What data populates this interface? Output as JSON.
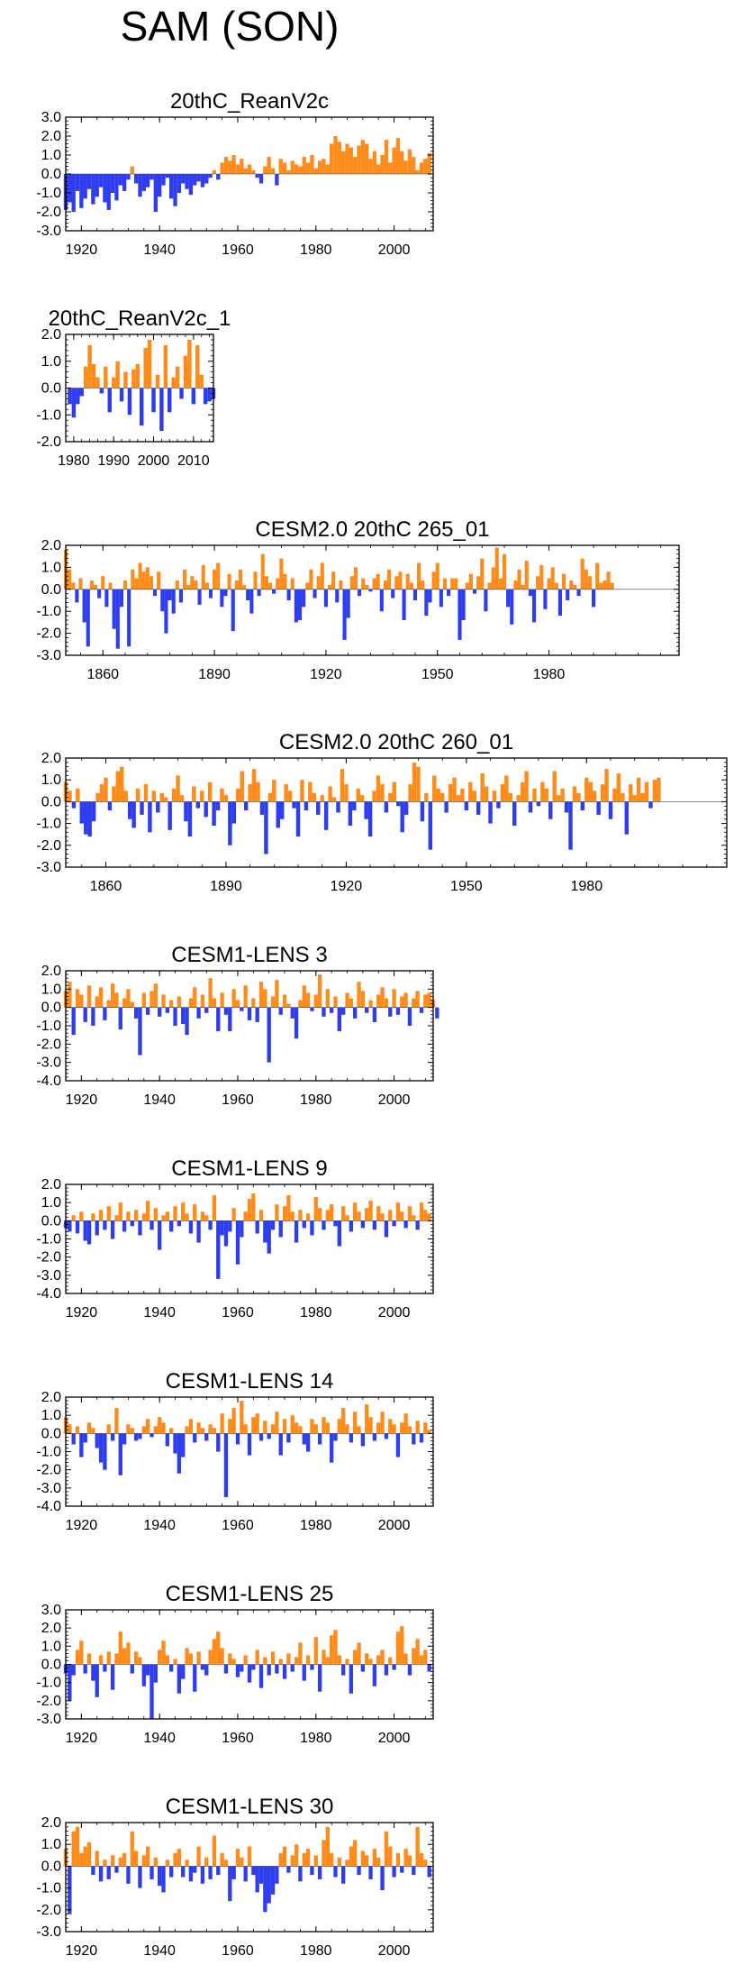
{
  "title": "SAM (SON)",
  "colors": {
    "positive": "#ff8c1a",
    "negative": "#2e3df0",
    "axis": "#000000"
  },
  "chart_data": [
    {
      "type": "area",
      "title": "20thC_ReanV2c",
      "xlim": [
        1916,
        2010
      ],
      "ylim": [
        -3,
        3
      ],
      "yticks": [
        "3.0",
        "2.0",
        "1.0",
        "0.0",
        "-1.0",
        "-2.0",
        "-3.0"
      ],
      "ytick_values": [
        3,
        2,
        1,
        0,
        -1,
        -2,
        -3
      ],
      "xticks": [
        "1920",
        "1940",
        "1960",
        "1980",
        "2000"
      ],
      "xtick_values": [
        1920,
        1940,
        1960,
        1980,
        2000
      ],
      "x_start": 1916,
      "x_step": 1,
      "values": [
        -1.9,
        -1.5,
        -2.0,
        -0.9,
        -1.8,
        -1.3,
        -0.8,
        -1.6,
        -1.2,
        -0.7,
        -1.5,
        -1.9,
        -1.0,
        -1.4,
        -0.6,
        -0.9,
        -0.3,
        0.4,
        -0.5,
        -1.2,
        -0.9,
        -0.7,
        -0.3,
        -2.0,
        -1.2,
        -0.6,
        -0.2,
        -1.3,
        -1.7,
        -1.0,
        -0.5,
        -0.8,
        -1.1,
        -0.6,
        -0.4,
        -0.7,
        -0.5,
        -0.2,
        0.2,
        -0.3,
        0.6,
        0.9,
        0.7,
        1.0,
        0.5,
        0.8,
        0.3,
        0.5,
        0.2,
        -0.2,
        -0.5,
        0.4,
        0.9,
        0.3,
        -0.6,
        0.8,
        0.6,
        0.2,
        0.7,
        0.5,
        0.4,
        0.9,
        0.6,
        1.0,
        0.3,
        0.7,
        0.8,
        0.5,
        1.6,
        2.0,
        1.7,
        1.2,
        1.6,
        1.4,
        0.9,
        1.5,
        1.8,
        1.6,
        0.8,
        1.2,
        0.5,
        1.0,
        1.8,
        0.6,
        1.4,
        1.9,
        1.2,
        0.7,
        1.3,
        0.9,
        0.2,
        0.6,
        0.8,
        1.1
      ]
    },
    {
      "type": "area",
      "title": "20thC_ReanV2c_1",
      "xlim": [
        1978,
        2015
      ],
      "ylim": [
        -2,
        2
      ],
      "yticks": [
        "2.0",
        "1.0",
        "0.0",
        "-1.0",
        "-2.0"
      ],
      "ytick_values": [
        2,
        1,
        0,
        -1,
        -2
      ],
      "xticks": [
        "1980",
        "1990",
        "2000",
        "2010"
      ],
      "xtick_values": [
        1980,
        1990,
        2000,
        2010
      ],
      "x_start": 1979,
      "x_step": 1,
      "values": [
        -0.6,
        -1.1,
        -0.6,
        -0.3,
        0.8,
        1.6,
        0.9,
        0.4,
        -0.2,
        0.8,
        -0.9,
        0.4,
        1.0,
        -0.5,
        0.6,
        -1.0,
        0.7,
        0.9,
        -1.4,
        1.5,
        1.8,
        -0.9,
        0.5,
        -1.6,
        1.6,
        -0.9,
        0.4,
        0.8,
        -0.4,
        1.2,
        1.8,
        -0.6,
        1.6,
        0.5,
        -0.6,
        -0.5,
        -0.4
      ]
    },
    {
      "type": "area",
      "title": "CESM2.0 20thC 265_01",
      "xlim": [
        1850,
        2015
      ],
      "ylim": [
        -3,
        2
      ],
      "yticks": [
        "2.0",
        "1.0",
        "0.0",
        "-1.0",
        "-2.0",
        "-3.0"
      ],
      "ytick_values": [
        2,
        1,
        0,
        -1,
        -2,
        -3
      ],
      "xticks": [
        "1860",
        "1890",
        "1920",
        "1950",
        "1980"
      ],
      "xtick_values": [
        1860,
        1890,
        1920,
        1950,
        1980
      ],
      "x_start": 1850,
      "x_step": 1,
      "values": [
        1.8,
        0.9,
        0.3,
        -0.6,
        0.5,
        -1.5,
        -2.6,
        0.4,
        0.2,
        -0.4,
        0.6,
        -0.8,
        0.3,
        -1.8,
        -2.7,
        -0.8,
        0.4,
        -2.6,
        0.9,
        0.5,
        1.2,
        0.8,
        1.0,
        0.6,
        -0.3,
        0.8,
        -1.0,
        -2.0,
        -0.5,
        -1.1,
        0.4,
        -0.6,
        0.9,
        0.2,
        0.6,
        0.4,
        -0.7,
        1.1,
        0.3,
        -0.4,
        0.9,
        1.2,
        -0.8,
        -0.3,
        0.7,
        -1.9,
        0.4,
        0.9,
        0.2,
        -0.5,
        -1.1,
        0.8,
        -0.3,
        1.6,
        0.6,
        0.3,
        -0.2,
        0.5,
        1.4,
        0.7,
        -0.5,
        0.5,
        -1.5,
        -1.4,
        -0.8,
        0.3,
        0.9,
        -0.4,
        0.6,
        1.2,
        -0.8,
        0.2,
        0.8,
        -0.6,
        0.4,
        -2.3,
        -1.3,
        0.6,
        1.0,
        -0.3,
        0.5,
        0.2,
        -0.1,
        0.5,
        0.7,
        -1.0,
        0.4,
        0.9,
        -0.4,
        0.6,
        0.8,
        -1.4,
        0.7,
        0.3,
        -0.5,
        1.2,
        0.4,
        -1.2,
        -0.6,
        0.8,
        1.2,
        -0.8,
        0.5,
        -0.3,
        0.5,
        0.5,
        -2.3,
        -1.4,
        0.3,
        0.7,
        -0.2,
        0.6,
        1.4,
        -1.0,
        0.3,
        1.0,
        1.9,
        0.5,
        1.6,
        -0.8,
        -1.6,
        0.4,
        0.9,
        0.2,
        1.3,
        -0.3,
        -1.5,
        0.6,
        1.1,
        -0.9,
        0.5,
        1.0,
        0.3,
        -1.2,
        0.7,
        -0.5,
        0.4,
        0.2,
        -0.3,
        1.4,
        0.9,
        0.6,
        -0.8,
        1.2,
        0.3,
        0.4,
        0.8,
        0.3
      ]
    },
    {
      "type": "area",
      "title": "CESM2.0 20thC 260_01",
      "xlim": [
        1850,
        2015
      ],
      "ylim": [
        -3,
        2
      ],
      "yticks": [
        "2.0",
        "1.0",
        "0.0",
        "-1.0",
        "-2.0",
        "-3.0"
      ],
      "ytick_values": [
        2,
        1,
        0,
        -1,
        -2,
        -3
      ],
      "xticks": [
        "1860",
        "1890",
        "1920",
        "1950",
        "1980"
      ],
      "xtick_values": [
        1860,
        1890,
        1920,
        1950,
        1980
      ],
      "x_start": 1850,
      "x_step": 1,
      "values": [
        0.9,
        0.5,
        -0.3,
        0.6,
        -1.0,
        -1.5,
        -1.6,
        -0.9,
        0.4,
        0.8,
        1.1,
        -0.4,
        0.7,
        1.4,
        1.6,
        0.5,
        -0.8,
        -1.2,
        0.6,
        -0.6,
        0.8,
        -1.4,
        0.5,
        -0.5,
        0.4,
        0.2,
        -1.3,
        0.6,
        1.2,
        0.3,
        -0.9,
        -1.6,
        0.7,
        -0.3,
        0.5,
        -0.7,
        0.9,
        -1.1,
        -0.4,
        0.6,
        0.3,
        -2.0,
        -1.0,
        0.6,
        1.4,
        -0.4,
        0.8,
        1.5,
        0.9,
        -0.6,
        -2.4,
        0.4,
        1.0,
        -1.2,
        -0.8,
        0.8,
        0.5,
        -0.3,
        -1.6,
        1.0,
        -0.4,
        0.9,
        0.4,
        -0.6,
        0.3,
        -1.3,
        0.7,
        0.2,
        -0.5,
        1.5,
        0.8,
        -1.1,
        -0.4,
        0.6,
        0.3,
        -0.8,
        -1.6,
        0.5,
        1.2,
        0.8,
        -0.5,
        0.4,
        0.9,
        -0.2,
        -1.4,
        -0.6,
        0.8,
        1.8,
        1.6,
        -0.9,
        0.4,
        -2.2,
        1.2,
        0.6,
        0.4,
        -0.5,
        0.8,
        1.1,
        0.3,
        0.6,
        -0.4,
        0.9,
        0.5,
        -0.6,
        1.3,
        0.7,
        -1.0,
        0.5,
        -0.3,
        0.8,
        1.2,
        0.4,
        -1.1,
        0.3,
        0.9,
        1.4,
        -0.5,
        0.6,
        -0.2,
        0.9,
        0.6,
        -0.8,
        1.4,
        0.3,
        0.6,
        -0.5,
        -2.2,
        0.7,
        0.4,
        -0.4,
        1.1,
        0.9,
        0.5,
        -0.6,
        0.8,
        1.5,
        -0.8,
        0.6,
        1.3,
        0.4,
        -1.5,
        0.8,
        0.3,
        1.1,
        0.4,
        0.9,
        -0.3,
        1.0,
        1.1
      ]
    },
    {
      "type": "area",
      "title": "CESM1-LENS 3",
      "xlim": [
        1916,
        2010
      ],
      "ylim": [
        -4,
        2
      ],
      "yticks": [
        "2.0",
        "1.0",
        "0.0",
        "-1.0",
        "-2.0",
        "-3.0",
        "-4.0"
      ],
      "ytick_values": [
        2,
        1,
        0,
        -1,
        -2,
        -3,
        -4
      ],
      "xticks": [
        "1920",
        "1940",
        "1960",
        "1980",
        "2000"
      ],
      "xtick_values": [
        1920,
        1940,
        1960,
        1980,
        2000
      ],
      "x_start": 1916,
      "x_step": 1,
      "values": [
        0.9,
        1.4,
        -1.5,
        1.0,
        0.7,
        -0.8,
        1.2,
        -1.0,
        0.6,
        1.1,
        -0.7,
        0.4,
        1.3,
        0.8,
        -1.2,
        0.5,
        1.0,
        0.3,
        -0.6,
        -2.6,
        0.8,
        -0.4,
        0.9,
        1.3,
        -0.5,
        0.7,
        -0.3,
        0.4,
        -1.0,
        0.6,
        -0.9,
        -1.5,
        0.5,
        1.1,
        -0.6,
        0.7,
        -0.3,
        1.6,
        0.5,
        -1.3,
        0.8,
        -0.4,
        -1.3,
        1.0,
        0.4,
        -0.2,
        1.2,
        -0.7,
        0.5,
        -0.8,
        1.4,
        1.0,
        -3.0,
        0.6,
        1.5,
        -0.4,
        0.7,
        0.2,
        -0.6,
        -1.7,
        0.4,
        1.2,
        0.8,
        -0.2,
        0.7,
        1.8,
        -0.5,
        1.0,
        -0.3,
        0.6,
        -1.3,
        -0.4,
        0.8,
        0.5,
        -0.6,
        1.4,
        0.9,
        -0.3,
        0.4,
        -0.8,
        0.7,
        1.1,
        0.5,
        -0.5,
        1.0,
        -0.4,
        0.6,
        0.8,
        -1.0,
        0.5,
        0.9,
        -0.3,
        0.7,
        0.8,
        0.4,
        -0.6
      ]
    },
    {
      "type": "area",
      "title": "CESM1-LENS 9",
      "xlim": [
        1916,
        2010
      ],
      "ylim": [
        -4,
        2
      ],
      "yticks": [
        "2.0",
        "1.0",
        "0.0",
        "-1.0",
        "-2.0",
        "-3.0",
        "-4.0"
      ],
      "ytick_values": [
        2,
        1,
        0,
        -1,
        -2,
        -3,
        -4
      ],
      "xticks": [
        "1920",
        "1940",
        "1960",
        "1980",
        "2000"
      ],
      "xtick_values": [
        1920,
        1940,
        1960,
        1980,
        2000
      ],
      "x_start": 1916,
      "x_step": 1,
      "values": [
        -0.4,
        -0.6,
        0.3,
        -0.7,
        0.5,
        -1.1,
        -1.3,
        0.4,
        -0.8,
        0.6,
        -0.5,
        0.8,
        -1.0,
        0.3,
        1.0,
        -0.6,
        0.5,
        -0.3,
        0.6,
        -0.8,
        0.4,
        1.1,
        -0.5,
        0.7,
        -1.6,
        0.3,
        0.5,
        -0.6,
        0.8,
        -0.3,
        1.0,
        0.4,
        -0.7,
        0.9,
        -1.2,
        0.5,
        0.3,
        -0.5,
        1.4,
        -3.2,
        -0.8,
        -1.4,
        -0.6,
        0.7,
        -2.4,
        -0.9,
        0.5,
        1.2,
        1.5,
        -0.7,
        0.6,
        -1.2,
        -1.8,
        -0.5,
        0.9,
        -0.9,
        0.8,
        1.4,
        0.5,
        -1.2,
        0.6,
        -0.4,
        0.4,
        -0.8,
        1.3,
        0.7,
        -0.5,
        0.6,
        0.9,
        -0.3,
        -1.4,
        0.8,
        0.3,
        -0.6,
        1.0,
        0.5,
        -0.4,
        0.7,
        1.1,
        -0.5,
        0.8,
        0.4,
        -0.9,
        0.6,
        -0.3,
        1.0,
        0.5,
        -0.4,
        0.8,
        0.3,
        -0.5,
        1.0,
        0.6,
        0.4
      ]
    },
    {
      "type": "area",
      "title": "CESM1-LENS 14",
      "xlim": [
        1916,
        2010
      ],
      "ylim": [
        -4,
        2
      ],
      "yticks": [
        "2.0",
        "1.0",
        "0.0",
        "-1.0",
        "-2.0",
        "-3.0",
        "-4.0"
      ],
      "ytick_values": [
        2,
        1,
        0,
        -1,
        -2,
        -3,
        -4
      ],
      "xticks": [
        "1920",
        "1940",
        "1960",
        "1980",
        "2000"
      ],
      "xtick_values": [
        1920,
        1940,
        1960,
        1980,
        2000
      ],
      "x_start": 1916,
      "x_step": 1,
      "values": [
        0.9,
        0.5,
        -0.6,
        0.4,
        -1.3,
        -0.5,
        0.6,
        0.3,
        -0.8,
        -1.6,
        -2.0,
        0.5,
        -0.4,
        1.4,
        -2.3,
        -0.6,
        0.5,
        0.3,
        -0.4,
        -0.3,
        0.4,
        0.8,
        -0.2,
        0.4,
        0.9,
        0.6,
        -0.7,
        0.3,
        -1.1,
        -2.2,
        -1.3,
        0.4,
        0.8,
        -0.5,
        0.6,
        0.3,
        -0.4,
        0.5,
        0.3,
        -1.0,
        1.1,
        -3.5,
        0.8,
        1.4,
        -0.6,
        1.8,
        0.5,
        -1.2,
        0.9,
        1.1,
        -0.4,
        0.7,
        -0.3,
        0.5,
        1.2,
        -1.2,
        0.8,
        -0.5,
        1.0,
        0.6,
        0.4,
        -0.6,
        -1.0,
        0.8,
        0.5,
        -0.6,
        0.9,
        0.6,
        -1.6,
        -0.4,
        0.8,
        1.4,
        0.5,
        -0.5,
        1.2,
        0.4,
        -0.7,
        1.6,
        0.9,
        -0.4,
        0.6,
        1.2,
        -0.3,
        0.8,
        0.5,
        -1.3,
        0.6,
        1.1,
        0.4,
        -0.6,
        0.7,
        -0.5,
        0.6,
        0.2
      ]
    },
    {
      "type": "area",
      "title": "CESM1-LENS 25",
      "xlim": [
        1916,
        2010
      ],
      "ylim": [
        -3,
        3
      ],
      "yticks": [
        "3.0",
        "2.0",
        "1.0",
        "0.0",
        "-1.0",
        "-2.0",
        "-3.0"
      ],
      "ytick_values": [
        3,
        2,
        1,
        0,
        -1,
        -2,
        -3
      ],
      "xticks": [
        "1920",
        "1940",
        "1960",
        "1980",
        "2000"
      ],
      "xtick_values": [
        1920,
        1940,
        1960,
        1980,
        2000
      ],
      "x_start": 1916,
      "x_step": 1,
      "values": [
        -0.5,
        -2.0,
        -0.6,
        0.8,
        1.3,
        -0.5,
        0.6,
        -0.9,
        -1.8,
        0.5,
        -0.4,
        0.7,
        -1.4,
        0.6,
        1.8,
        0.9,
        1.2,
        -0.5,
        0.7,
        0.4,
        -1.2,
        -0.6,
        -3.0,
        -1.0,
        0.8,
        1.3,
        0.5,
        -0.4,
        0.3,
        -1.6,
        -0.8,
        0.9,
        0.6,
        -1.5,
        0.7,
        -0.3,
        -0.6,
        0.8,
        1.4,
        1.8,
        0.9,
        -0.5,
        0.6,
        0.3,
        -0.7,
        -0.4,
        0.5,
        -1.0,
        -0.3,
        0.8,
        -1.3,
        0.4,
        -0.6,
        0.7,
        -0.5,
        0.3,
        -0.8,
        0.6,
        -0.4,
        0.4,
        1.2,
        -0.9,
        0.5,
        -0.3,
        1.5,
        -1.5,
        0.8,
        0.4,
        1.6,
        1.9,
        0.5,
        -0.6,
        0.3,
        -1.6,
        0.8,
        1.2,
        -0.4,
        0.6,
        0.3,
        -1.2,
        0.5,
        0.8,
        -0.6,
        0.4,
        -0.3,
        1.8,
        2.1,
        0.6,
        -0.6,
        0.9,
        1.4,
        0.5,
        0.8,
        -0.4
      ]
    },
    {
      "type": "area",
      "title": "CESM1-LENS 30",
      "xlim": [
        1916,
        2010
      ],
      "ylim": [
        -3,
        2
      ],
      "yticks": [
        "2.0",
        "1.0",
        "0.0",
        "-1.0",
        "-2.0",
        "-3.0"
      ],
      "ytick_values": [
        2,
        1,
        0,
        -1,
        -2,
        -3
      ],
      "xticks": [
        "1920",
        "1940",
        "1960",
        "1980",
        "2000"
      ],
      "xtick_values": [
        1920,
        1940,
        1960,
        1980,
        2000
      ],
      "x_start": 1916,
      "x_step": 1,
      "values": [
        0.8,
        -2.2,
        1.6,
        1.8,
        0.6,
        0.9,
        1.1,
        -0.4,
        0.7,
        -0.7,
        0.3,
        -0.6,
        0.5,
        -0.3,
        0.4,
        0.6,
        -0.8,
        1.6,
        0.7,
        -1.0,
        0.5,
        0.9,
        -0.6,
        0.4,
        -0.9,
        -1.2,
        0.3,
        -0.5,
        0.6,
        0.8,
        -0.5,
        0.3,
        -0.7,
        -0.3,
        0.9,
        -0.8,
        0.4,
        -0.6,
        1.4,
        -0.4,
        0.6,
        0.3,
        -1.6,
        -0.6,
        0.8,
        0.4,
        -0.7,
        0.9,
        -0.4,
        -1.2,
        -0.8,
        -2.1,
        -1.7,
        -1.3,
        -0.8,
        0.6,
        0.9,
        -0.3,
        0.5,
        1.0,
        -0.7,
        0.6,
        0.8,
        -0.4,
        0.5,
        -0.6,
        1.2,
        1.8,
        0.6,
        -0.5,
        0.4,
        -0.8,
        0.3,
        0.9,
        1.2,
        -0.4,
        0.7,
        0.5,
        -0.6,
        0.8,
        0.4,
        -1.1,
        1.6,
        0.9,
        -0.5,
        0.6,
        -0.3,
        0.8,
        0.5,
        -0.4,
        1.8,
        0.6,
        0.3,
        -0.5
      ]
    }
  ]
}
